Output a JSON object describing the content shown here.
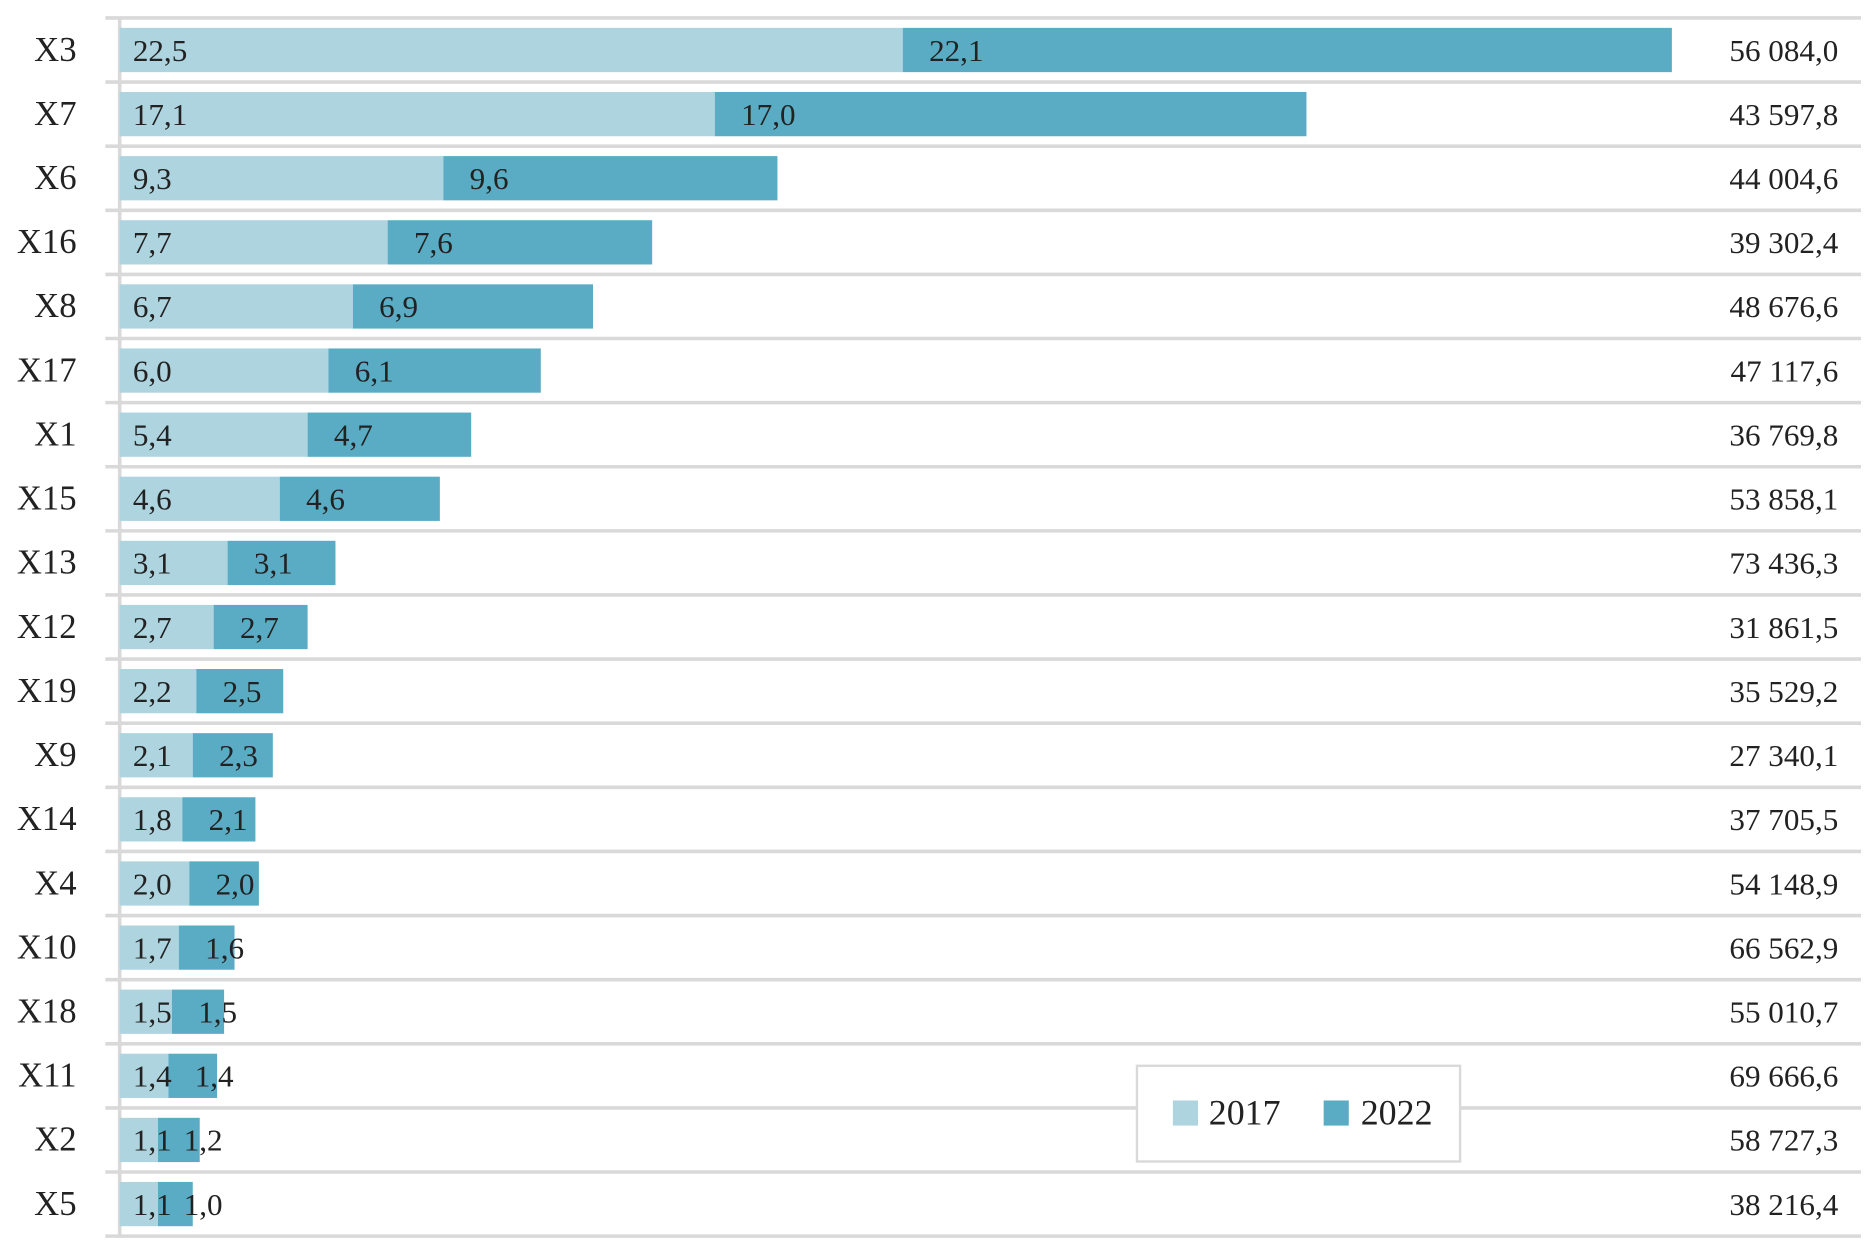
{
  "chart_data": {
    "type": "bar",
    "orientation": "horizontal",
    "stacked": true,
    "categories": [
      "X3",
      "X7",
      "X6",
      "X16",
      "X8",
      "X17",
      "X1",
      "X15",
      "X13",
      "X12",
      "X19",
      "X9",
      "X14",
      "X4",
      "X10",
      "X18",
      "X11",
      "X2",
      "X5"
    ],
    "series": [
      {
        "name": "2017",
        "color": "#aed4e0",
        "values": [
          22.5,
          17.1,
          9.3,
          7.7,
          6.7,
          6.0,
          5.4,
          4.6,
          3.1,
          2.7,
          2.2,
          2.1,
          1.8,
          2.0,
          1.7,
          1.5,
          1.4,
          1.1,
          1.1
        ],
        "labels": [
          "22,5",
          "17,1",
          "9,3",
          "7,7",
          "6,7",
          "6,0",
          "5,4",
          "4,6",
          "3,1",
          "2,7",
          "2,2",
          "2,1",
          "1,8",
          "2,0",
          "1,7",
          "1,5",
          "1,4",
          "1,1",
          "1,1"
        ]
      },
      {
        "name": "2022",
        "color": "#5aacc4",
        "values": [
          22.1,
          17.0,
          9.6,
          7.6,
          6.9,
          6.1,
          4.7,
          4.6,
          3.1,
          2.7,
          2.5,
          2.3,
          2.1,
          2.0,
          1.6,
          1.5,
          1.4,
          1.2,
          1.0
        ],
        "labels": [
          "22,1",
          "17,0",
          "9,6",
          "7,6",
          "6,9",
          "6,1",
          "4,7",
          "4,6",
          "3,1",
          "2,7",
          "2,5",
          "2,3",
          "2,1",
          "2,0",
          "1,6",
          "1,5",
          "1,4",
          "1,2",
          "1,0"
        ]
      }
    ],
    "right_values": [
      "56 084,0",
      "43 597,8",
      "44 004,6",
      "39 302,4",
      "48 676,6",
      "47 117,6",
      "36 769,8",
      "53 858,1",
      "73 436,3",
      "31 861,5",
      "35 529,2",
      "27 340,1",
      "37 705,5",
      "54 148,9",
      "66 562,9",
      "55 010,7",
      "69 666,6",
      "58 727,3",
      "38 216,4"
    ],
    "legend": {
      "position": "bottom-right-inside",
      "entries": [
        "2017",
        "2022"
      ]
    },
    "grid": true
  }
}
